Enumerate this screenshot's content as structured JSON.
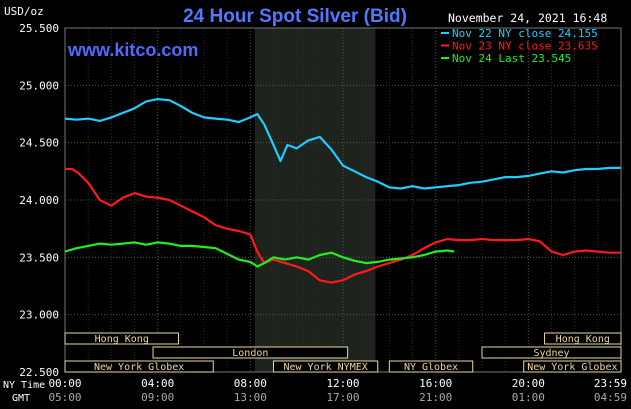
{
  "chart_data": {
    "type": "line",
    "title": "24 Hour Spot Silver (Bid)",
    "unit_label": "USD/oz",
    "watermark": "www.kitco.com",
    "timestamp": "November 24, 2021 16:48",
    "ylim": [
      22.5,
      25.5
    ],
    "y_ticks": [
      "25.500",
      "25.000",
      "24.500",
      "24.000",
      "23.500",
      "23.000",
      "22.500"
    ],
    "y_tick_values": [
      25.5,
      25.0,
      24.5,
      24.0,
      23.5,
      23.0,
      22.5
    ],
    "x_row_label": "NY Time",
    "gmt_row_label": "GMT",
    "x_ticks": [
      "00:00",
      "04:00",
      "08:00",
      "12:00",
      "16:00",
      "20:00",
      "23:59"
    ],
    "x_tick_hours": [
      0,
      4,
      8,
      12,
      16,
      20,
      23.98
    ],
    "gmt_ticks": [
      "05:00",
      "09:00",
      "13:00",
      "17:00",
      "21:00",
      "01:00",
      "04:59"
    ],
    "shaded_hours": [
      8.2,
      13.4
    ],
    "markets": [
      {
        "name": "Hong Kong",
        "start": 0,
        "end": 4.9
      },
      {
        "name": "London",
        "start": 3.8,
        "end": 12.2
      },
      {
        "name": "New York Globex",
        "start": 0,
        "end": 6.4
      },
      {
        "name": "New York NYMEX",
        "start": 9.0,
        "end": 13.5
      },
      {
        "name": "NY Globex",
        "start": 14.0,
        "end": 17.6
      },
      {
        "name": "Hong Kong",
        "start": 20.7,
        "end": 24
      },
      {
        "name": "Sydney",
        "start": 18.0,
        "end": 24
      },
      {
        "name": "New York Globex",
        "start": 19.8,
        "end": 24
      }
    ],
    "series": [
      {
        "name": "Nov 22 NY close 24.155",
        "color": "#22ccff",
        "x": [
          0,
          0.5,
          1.0,
          1.5,
          2.0,
          2.5,
          3.0,
          3.5,
          4.0,
          4.5,
          5.0,
          5.5,
          6.0,
          6.5,
          7.0,
          7.5,
          8.0,
          8.3,
          8.6,
          9.0,
          9.3,
          9.6,
          10.0,
          10.5,
          11.0,
          11.5,
          12.0,
          12.5,
          13.0,
          13.5,
          14.0,
          14.5,
          15.0,
          15.5,
          16.0,
          16.5,
          17.0,
          17.5,
          18.0,
          18.5,
          19.0,
          19.5,
          20.0,
          20.5,
          21.0,
          21.5,
          22.0,
          22.5,
          23.0,
          23.5,
          23.98
        ],
        "values": [
          24.71,
          24.7,
          24.71,
          24.69,
          24.72,
          24.76,
          24.8,
          24.86,
          24.88,
          24.87,
          24.82,
          24.76,
          24.72,
          24.71,
          24.7,
          24.68,
          24.72,
          24.75,
          24.66,
          24.48,
          24.34,
          24.48,
          24.45,
          24.52,
          24.55,
          24.44,
          24.3,
          24.25,
          24.2,
          24.16,
          24.11,
          24.1,
          24.12,
          24.1,
          24.11,
          24.12,
          24.13,
          24.15,
          24.16,
          24.18,
          24.2,
          24.2,
          24.21,
          24.23,
          24.25,
          24.24,
          24.26,
          24.27,
          24.27,
          24.28,
          24.28
        ]
      },
      {
        "name": "Nov 23 NY close 23.635",
        "color": "#ff1a1a",
        "x": [
          0,
          0.3,
          0.6,
          1.0,
          1.5,
          2.0,
          2.5,
          3.0,
          3.5,
          4.0,
          4.5,
          5.0,
          5.5,
          6.0,
          6.5,
          7.0,
          7.5,
          8.0,
          8.3,
          8.6,
          9.0,
          9.5,
          10.0,
          10.5,
          11.0,
          11.5,
          12.0,
          12.5,
          13.0,
          13.5,
          14.0,
          14.5,
          15.0,
          15.5,
          16.0,
          16.5,
          17.0,
          17.5,
          18.0,
          18.5,
          19.0,
          19.5,
          20.0,
          20.5,
          21.0,
          21.5,
          22.0,
          22.5,
          23.0,
          23.5,
          23.98
        ],
        "values": [
          24.27,
          24.27,
          24.23,
          24.15,
          24.0,
          23.95,
          24.02,
          24.06,
          24.03,
          24.02,
          24.0,
          23.95,
          23.9,
          23.85,
          23.78,
          23.75,
          23.73,
          23.7,
          23.55,
          23.45,
          23.48,
          23.45,
          23.42,
          23.38,
          23.3,
          23.28,
          23.3,
          23.35,
          23.38,
          23.42,
          23.45,
          23.48,
          23.52,
          23.58,
          23.63,
          23.66,
          23.65,
          23.65,
          23.66,
          23.65,
          23.65,
          23.65,
          23.66,
          23.64,
          23.55,
          23.52,
          23.55,
          23.56,
          23.55,
          23.54,
          23.54
        ]
      },
      {
        "name": "Nov 24 Last 23.545",
        "color": "#22ee22",
        "x": [
          0,
          0.5,
          1.0,
          1.5,
          2.0,
          2.5,
          3.0,
          3.5,
          4.0,
          4.5,
          5.0,
          5.5,
          6.0,
          6.5,
          7.0,
          7.5,
          8.0,
          8.3,
          8.6,
          9.0,
          9.5,
          10.0,
          10.5,
          11.0,
          11.5,
          12.0,
          12.5,
          13.0,
          13.5,
          14.0,
          14.5,
          15.0,
          15.5,
          16.0,
          16.5,
          16.8
        ],
        "values": [
          23.55,
          23.58,
          23.6,
          23.62,
          23.61,
          23.62,
          23.63,
          23.61,
          23.63,
          23.62,
          23.6,
          23.6,
          23.59,
          23.58,
          23.53,
          23.48,
          23.46,
          23.42,
          23.45,
          23.5,
          23.48,
          23.5,
          23.48,
          23.52,
          23.54,
          23.5,
          23.47,
          23.45,
          23.46,
          23.48,
          23.49,
          23.5,
          23.52,
          23.55,
          23.56,
          23.55
        ]
      }
    ]
  }
}
